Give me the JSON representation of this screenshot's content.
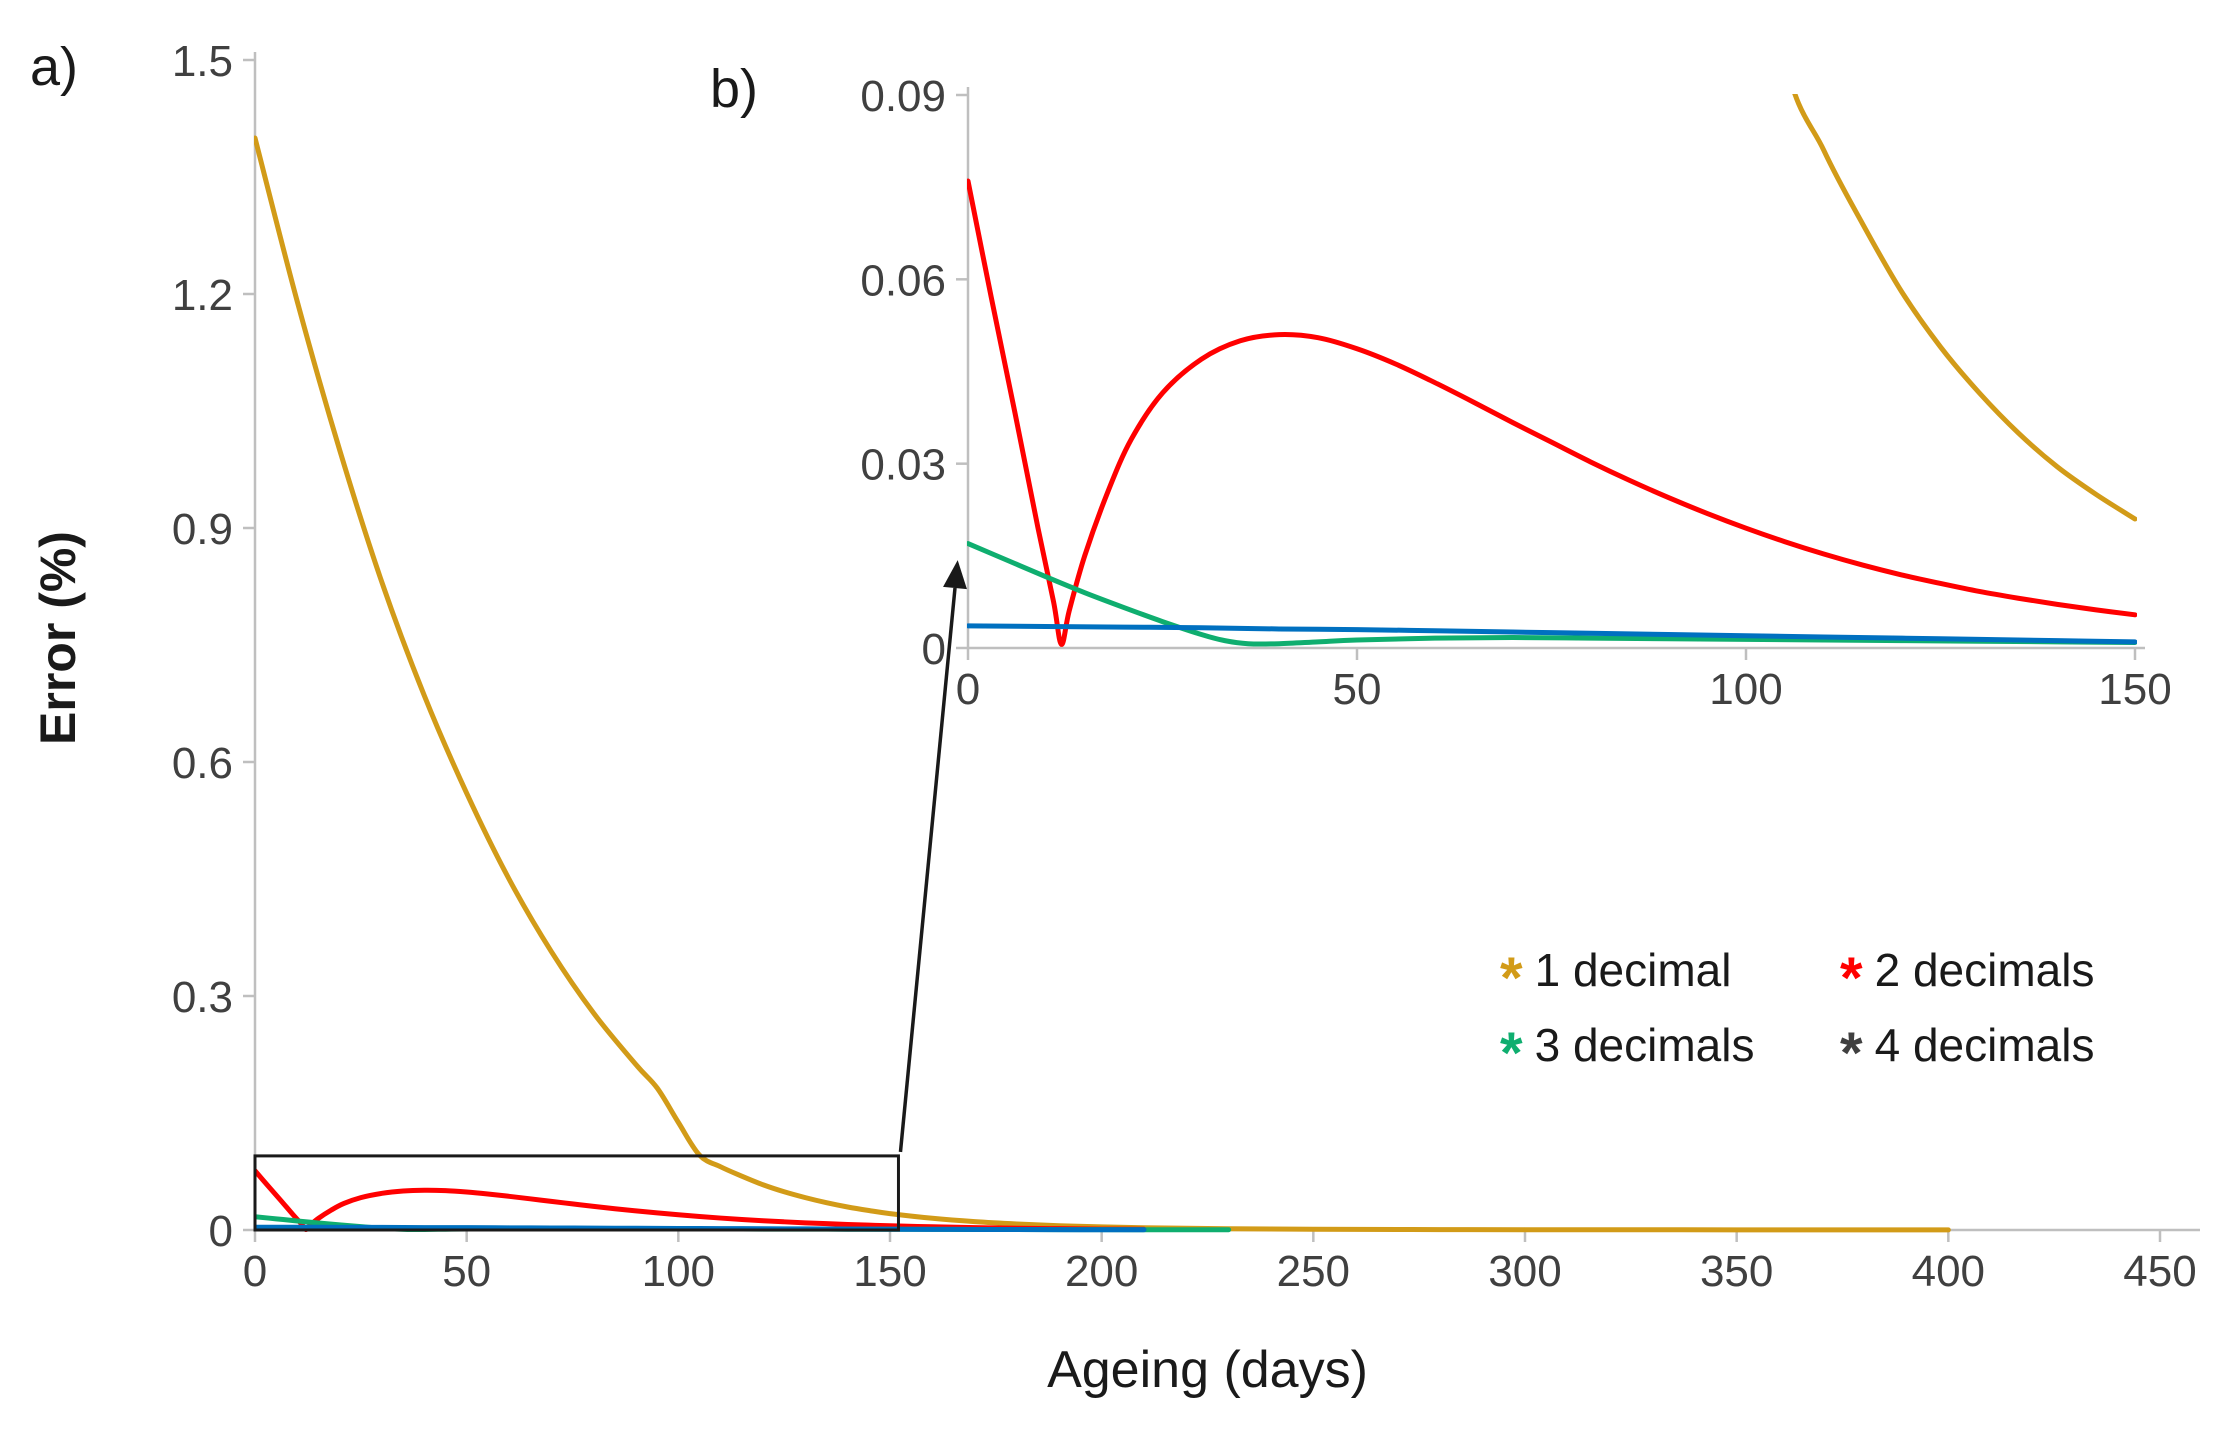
{
  "figure": {
    "panel_a_label": "a)",
    "panel_b_label": "b)",
    "xlabel": "Ageing (days)",
    "ylabel": "Error (%)"
  },
  "legend": {
    "items": [
      {
        "marker": "*",
        "label": "1 decimal",
        "color": "#D29B18"
      },
      {
        "marker": "*",
        "label": "2 decimals",
        "color": "#FF0000"
      },
      {
        "marker": "*",
        "label": "3 decimals",
        "color": "#0FAE6F"
      },
      {
        "marker": "*",
        "label": "4 decimals",
        "color": "#404040"
      }
    ],
    "position": "center-right"
  },
  "chart_data": {
    "type": "line",
    "title": "",
    "xlabel": "Ageing (days)",
    "ylabel": "Error (%)",
    "grid": false,
    "panels": [
      {
        "id": "main",
        "label": "a)",
        "xlim": [
          0,
          450
        ],
        "ylim": [
          0,
          1.5
        ],
        "xticks": [
          0,
          50,
          100,
          150,
          200,
          250,
          300,
          350,
          400,
          450
        ],
        "xtick_labels": [
          "0",
          "50",
          "100",
          "150",
          "200",
          "250",
          "300",
          "350",
          "400",
          "450"
        ],
        "yticks": [
          0,
          0.3,
          0.6,
          0.9,
          1.2,
          1.5
        ],
        "ytick_labels": [
          "0",
          "0.3",
          "0.6",
          "0.9",
          "1.2",
          "1.5"
        ]
      },
      {
        "id": "inset",
        "label": "b)",
        "xlim": [
          0,
          150
        ],
        "ylim": [
          0,
          0.09
        ],
        "xticks": [
          0,
          50,
          100,
          150
        ],
        "xtick_labels": [
          "0",
          "50",
          "100",
          "150"
        ],
        "yticks": [
          0,
          0.03,
          0.06,
          0.09
        ],
        "ytick_labels": [
          "0",
          "0.03",
          "0.06",
          "0.09"
        ]
      }
    ],
    "zoom_annotation": {
      "rect": {
        "x0": 0,
        "x1": 152,
        "y0": 0,
        "y1": 0.095
      },
      "arrow_from": "main-rect-top-right",
      "arrow_to": "inset-bottom-left"
    },
    "series": [
      {
        "name": "1 decimal",
        "color": "#D29B18",
        "points": [
          [
            0,
            1.4
          ],
          [
            10,
            1.19
          ],
          [
            20,
            1.0
          ],
          [
            30,
            0.83
          ],
          [
            40,
            0.685
          ],
          [
            50,
            0.56
          ],
          [
            60,
            0.45
          ],
          [
            70,
            0.357
          ],
          [
            80,
            0.278
          ],
          [
            90,
            0.212
          ],
          [
            95,
            0.182
          ],
          [
            100,
            0.138
          ],
          [
            105,
            0.096
          ],
          [
            110,
            0.081
          ],
          [
            115,
            0.069
          ],
          [
            120,
            0.058
          ],
          [
            125,
            0.049
          ],
          [
            130,
            0.0415
          ],
          [
            135,
            0.035
          ],
          [
            140,
            0.0295
          ],
          [
            145,
            0.025
          ],
          [
            150,
            0.021
          ],
          [
            160,
            0.015
          ],
          [
            170,
            0.0107
          ],
          [
            180,
            0.0077
          ],
          [
            190,
            0.0055
          ],
          [
            200,
            0.004
          ],
          [
            215,
            0.0025
          ],
          [
            230,
            0.0016
          ],
          [
            245,
            0.0011
          ],
          [
            260,
            0.0008
          ],
          [
            280,
            0.0005
          ],
          [
            300,
            0.0004
          ],
          [
            325,
            0.0003
          ],
          [
            350,
            0.0002
          ],
          [
            375,
            0.0002
          ],
          [
            400,
            0.0001
          ]
        ]
      },
      {
        "name": "2 decimals",
        "color": "#FF0000",
        "points": [
          [
            0,
            0.076
          ],
          [
            3,
            0.057
          ],
          [
            6,
            0.0385
          ],
          [
            9,
            0.0195
          ],
          [
            11,
            0.0075
          ],
          [
            12,
            0.0006
          ],
          [
            13,
            0.006
          ],
          [
            15,
            0.015
          ],
          [
            18,
            0.0255
          ],
          [
            21,
            0.034
          ],
          [
            25,
            0.0415
          ],
          [
            30,
            0.047
          ],
          [
            35,
            0.05
          ],
          [
            40,
            0.051
          ],
          [
            45,
            0.0505
          ],
          [
            50,
            0.0487
          ],
          [
            55,
            0.0462
          ],
          [
            60,
            0.0432
          ],
          [
            65,
            0.04
          ],
          [
            70,
            0.0367
          ],
          [
            75,
            0.0335
          ],
          [
            80,
            0.0303
          ],
          [
            85,
            0.0273
          ],
          [
            90,
            0.0245
          ],
          [
            95,
            0.0219
          ],
          [
            100,
            0.0195
          ],
          [
            105,
            0.0173
          ],
          [
            110,
            0.0153
          ],
          [
            115,
            0.0135
          ],
          [
            120,
            0.0119
          ],
          [
            125,
            0.0105
          ],
          [
            130,
            0.0092
          ],
          [
            135,
            0.0081
          ],
          [
            140,
            0.0071
          ],
          [
            145,
            0.0062
          ],
          [
            150,
            0.0054
          ],
          [
            160,
            0.0041
          ],
          [
            170,
            0.0031
          ],
          [
            180,
            0.0023
          ],
          [
            190,
            0.0017
          ],
          [
            200,
            0.0012
          ],
          [
            210,
            0.0009
          ]
        ]
      },
      {
        "name": "3 decimals",
        "color": "#0FAE6F",
        "points": [
          [
            0,
            0.017
          ],
          [
            5,
            0.0143
          ],
          [
            10,
            0.0116
          ],
          [
            15,
            0.009
          ],
          [
            20,
            0.0066
          ],
          [
            25,
            0.0043
          ],
          [
            30,
            0.0022
          ],
          [
            33,
            0.0012
          ],
          [
            36,
            0.0007
          ],
          [
            40,
            0.0007
          ],
          [
            45,
            0.001
          ],
          [
            50,
            0.0013
          ],
          [
            60,
            0.0016
          ],
          [
            70,
            0.0017
          ],
          [
            80,
            0.0016
          ],
          [
            90,
            0.0015
          ],
          [
            100,
            0.0014
          ],
          [
            110,
            0.0013
          ],
          [
            120,
            0.0012
          ],
          [
            130,
            0.0011
          ],
          [
            140,
            0.001
          ],
          [
            150,
            0.0009
          ],
          [
            170,
            0.0007
          ],
          [
            190,
            0.0005
          ],
          [
            210,
            0.0004
          ],
          [
            230,
            0.0003
          ]
        ]
      },
      {
        "name": "4 decimals",
        "color": "#0070C0",
        "legend_marker_color": "#404040",
        "points": [
          [
            0,
            0.0036
          ],
          [
            10,
            0.0035
          ],
          [
            20,
            0.0034
          ],
          [
            30,
            0.0033
          ],
          [
            40,
            0.0031
          ],
          [
            50,
            0.003
          ],
          [
            60,
            0.0028
          ],
          [
            70,
            0.0026
          ],
          [
            80,
            0.0024
          ],
          [
            90,
            0.0022
          ],
          [
            100,
            0.002
          ],
          [
            110,
            0.0018
          ],
          [
            120,
            0.0016
          ],
          [
            130,
            0.0014
          ],
          [
            140,
            0.0012
          ],
          [
            150,
            0.001
          ],
          [
            165,
            0.0008
          ],
          [
            180,
            0.0006
          ],
          [
            195,
            0.0004
          ],
          [
            210,
            0.0003
          ]
        ]
      }
    ]
  }
}
